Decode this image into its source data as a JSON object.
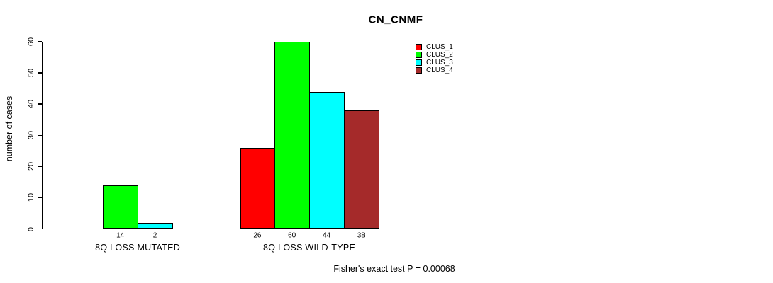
{
  "title": "CN_CNMF",
  "ylabel": "number of cases",
  "footnote": "Fisher's exact test P = 0.00068",
  "chart_data": {
    "type": "bar",
    "title": "CN_CNMF",
    "xlabel": "",
    "ylabel": "number of cases",
    "categories": [
      "8Q LOSS MUTATED",
      "8Q LOSS WILD-TYPE"
    ],
    "series": [
      {
        "name": "CLUS_1",
        "color": "#ff0000",
        "values": [
          0,
          26
        ]
      },
      {
        "name": "CLUS_2",
        "color": "#00ff00",
        "values": [
          14,
          60
        ]
      },
      {
        "name": "CLUS_3",
        "color": "#00ffff",
        "values": [
          2,
          44
        ]
      },
      {
        "name": "CLUS_4",
        "color": "#a52a2a",
        "values": [
          0,
          38
        ]
      }
    ],
    "bar_value_labels": [
      [
        "",
        "14",
        "2",
        ""
      ],
      [
        "26",
        "60",
        "44",
        "38"
      ]
    ],
    "ylim": [
      0,
      60
    ],
    "yticks": [
      0,
      10,
      20,
      30,
      40,
      50,
      60
    ],
    "grid": false,
    "legend_position": "top-right",
    "annotation": "Fisher's exact test P = 0.00068"
  }
}
